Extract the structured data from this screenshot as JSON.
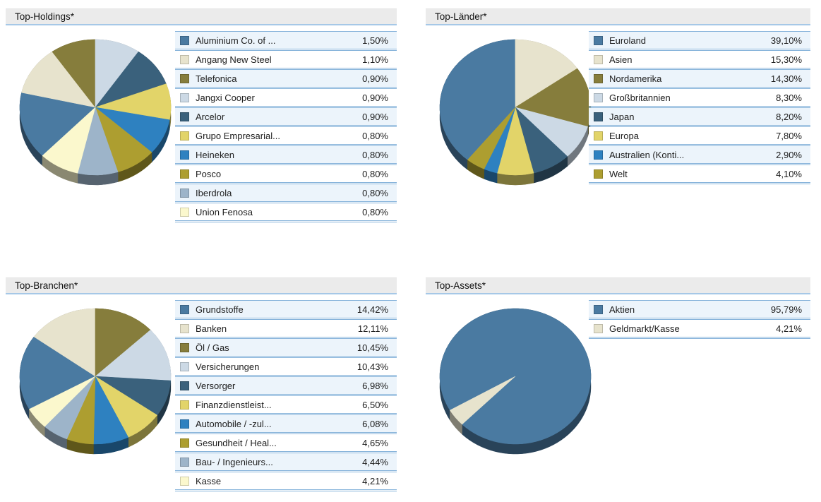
{
  "theme": {
    "header-bg": "#ebebeb",
    "header-line": "#a6c8e7",
    "row-border": "#86b3da",
    "row-alt": "#ecf4fb",
    "text": "#1d1d1d"
  },
  "chart_data": [
    {
      "type": "pie",
      "style": "3d",
      "title": "Top-Holdings*",
      "legend_position": "right",
      "start_angle": 224.5,
      "labels": [
        "Aluminium Co. of ...",
        "Angang New Steel",
        "Telefonica",
        "Jangxi Cooper",
        "Arcelor",
        "Grupo Empresarial...",
        "Heineken",
        "Posco",
        "Iberdrola",
        "Union Fenosa"
      ],
      "values": [
        1.5,
        1.1,
        0.9,
        0.9,
        0.9,
        0.8,
        0.8,
        0.8,
        0.8,
        0.8
      ],
      "display_values": [
        "1,50%",
        "1,10%",
        "0,90%",
        "0,90%",
        "0,90%",
        "0,80%",
        "0,80%",
        "0,80%",
        "0,80%",
        "0,80%"
      ],
      "colors": [
        "#4a7aa1",
        "#e7e3cd",
        "#867d3c",
        "#ccd9e5",
        "#3a617c",
        "#e2d469",
        "#2e81c0",
        "#ad9e30",
        "#9db4c9",
        "#fbf8cd"
      ]
    },
    {
      "type": "pie",
      "style": "3d",
      "title": "Top-Länder*",
      "legend_position": "right",
      "start_angle": 219.2,
      "labels": [
        "Euroland",
        "Asien",
        "Nordamerika",
        "Großbritannien",
        "Japan",
        "Europa",
        "Australien (Konti...",
        "Welt"
      ],
      "values": [
        39.1,
        15.3,
        14.3,
        8.3,
        8.2,
        7.8,
        2.9,
        4.1
      ],
      "display_values": [
        "39,10%",
        "15,30%",
        "14,30%",
        "8,30%",
        "8,20%",
        "7,80%",
        "2,90%",
        "4,10%"
      ],
      "colors": [
        "#4a7aa1",
        "#e7e3cd",
        "#867d3c",
        "#ccd9e5",
        "#3a617c",
        "#e2d469",
        "#2e81c0",
        "#ad9e30"
      ]
    },
    {
      "type": "pie",
      "style": "3d",
      "title": "Top-Branchen*",
      "legend_position": "right",
      "start_angle": 241.0,
      "labels": [
        "Grundstoffe",
        "Banken",
        "Öl / Gas",
        "Versicherungen",
        "Versorger",
        "Finanzdienstleist...",
        "Automobile / -zul...",
        "Gesundheit / Heal...",
        "Bau- / Ingenieurs...",
        "Kasse"
      ],
      "values": [
        14.42,
        12.11,
        10.45,
        10.43,
        6.98,
        6.5,
        6.08,
        4.65,
        4.44,
        4.21
      ],
      "display_values": [
        "14,42%",
        "12,11%",
        "10,45%",
        "10,43%",
        "6,98%",
        "6,50%",
        "6,08%",
        "4,65%",
        "4,44%",
        "4,21%"
      ],
      "colors": [
        "#4a7aa1",
        "#e7e3cd",
        "#867d3c",
        "#ccd9e5",
        "#3a617c",
        "#e2d469",
        "#2e81c0",
        "#ad9e30",
        "#9db4c9",
        "#fbf8cd"
      ]
    },
    {
      "type": "pie",
      "style": "3d",
      "title": "Top-Assets*",
      "legend_position": "right",
      "start_angle": 240.0,
      "labels": [
        "Aktien",
        "Geldmarkt/Kasse"
      ],
      "values": [
        95.79,
        4.21
      ],
      "display_values": [
        "95,79%",
        "4,21%"
      ],
      "colors": [
        "#4a7aa1",
        "#e7e3cd"
      ]
    }
  ]
}
